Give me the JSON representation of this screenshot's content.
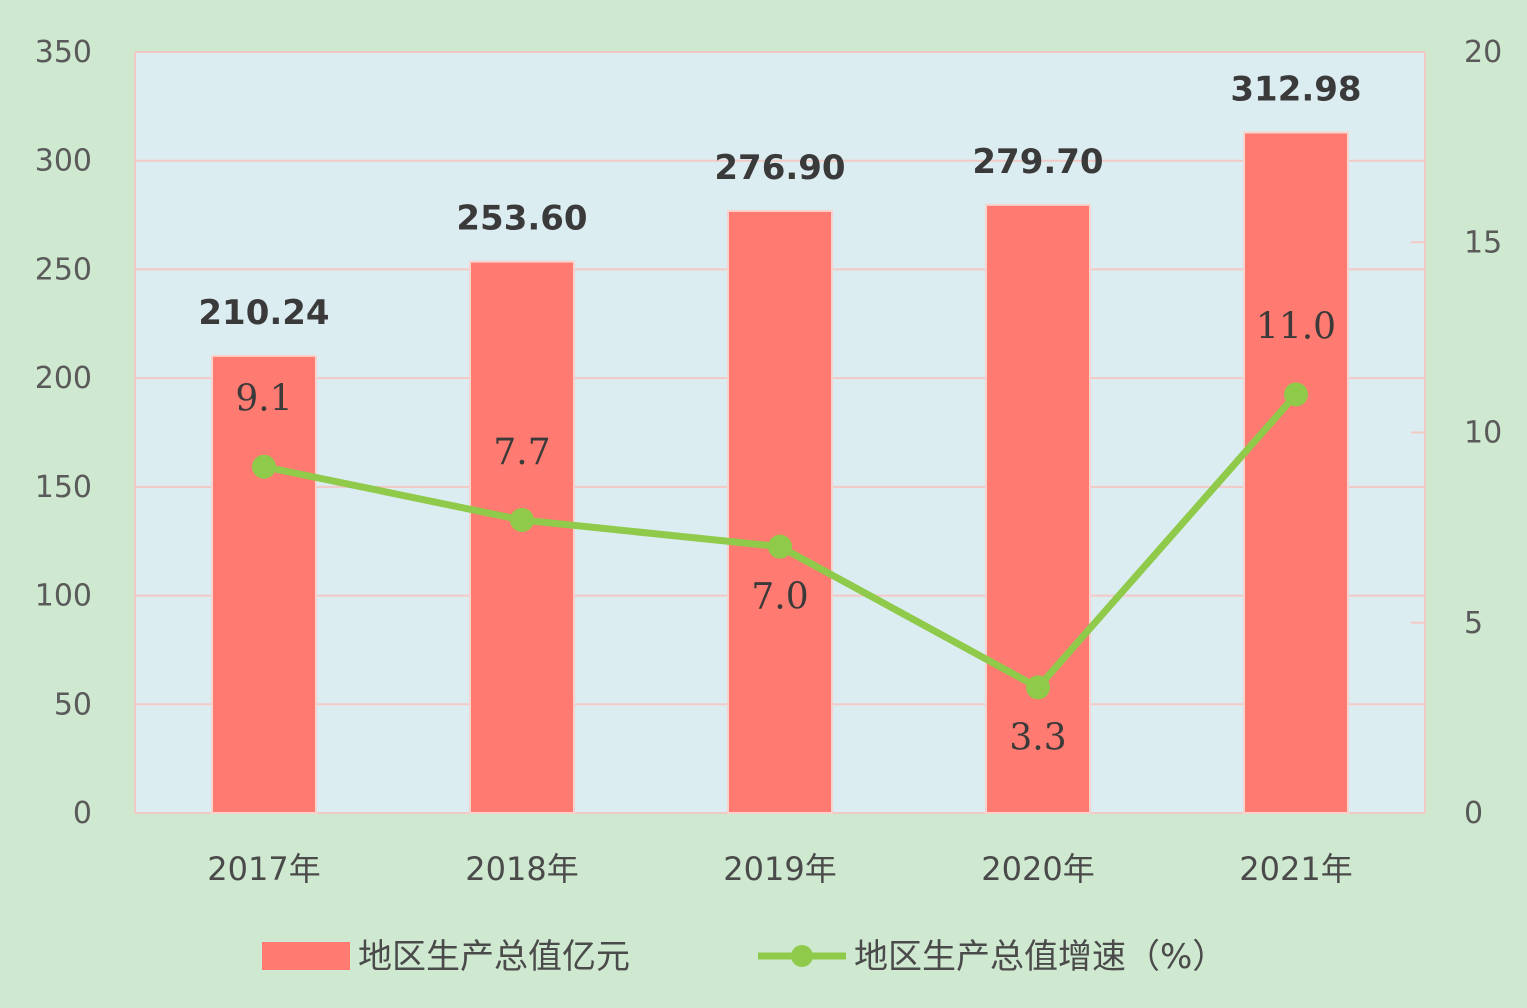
{
  "chart_data": {
    "type": "bar",
    "categories": [
      "2017年",
      "2018年",
      "2019年",
      "2020年",
      "2021年"
    ],
    "series": [
      {
        "name": "地区生产总值亿元",
        "type": "bar",
        "axis": "left",
        "values": [
          210.24,
          253.6,
          276.9,
          279.7,
          312.98
        ],
        "labels": [
          "210.24",
          "253.60",
          "276.90",
          "279.70",
          "312.98"
        ]
      },
      {
        "name": "地区生产总值增速（%）",
        "type": "line",
        "axis": "right",
        "values": [
          9.1,
          7.7,
          7.0,
          3.3,
          11.0
        ],
        "labels": [
          "9.1",
          "7.7",
          "7.0",
          "3.3",
          "11.0"
        ]
      }
    ],
    "y_left": {
      "min": 0,
      "max": 350,
      "ticks": [
        "0",
        "50",
        "100",
        "150",
        "200",
        "250",
        "300",
        "350"
      ]
    },
    "y_right": {
      "min": 0,
      "max": 20,
      "ticks": [
        "0",
        "5",
        "10",
        "15",
        "20"
      ]
    },
    "legend_position": "bottom",
    "grid": true
  },
  "colors": {
    "background": "#cfe8d0",
    "plot_area": "#dcedf2",
    "bar": "#ff7a70",
    "line": "#8fca4a",
    "grid": "#f2c9c4"
  }
}
